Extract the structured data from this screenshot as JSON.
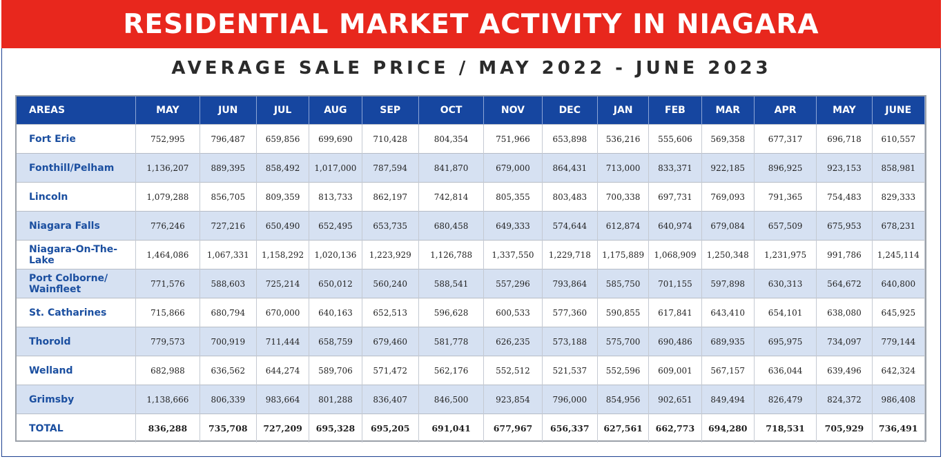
{
  "header": {
    "title": "RESIDENTIAL MARKET ACTIVITY IN NIAGARA",
    "subtitle": "AVERAGE SALE PRICE / MAY 2022 - JUNE 2023"
  },
  "colors": {
    "banner": "#e8271d",
    "header_row": "#1646a0",
    "alt_row": "#d6e1f2",
    "area_text": "#1b4fa0"
  },
  "chart_data": {
    "type": "table",
    "columns": [
      "AREAS",
      "MAY",
      "JUN",
      "JUL",
      "AUG",
      "SEP",
      "OCT",
      "NOV",
      "DEC",
      "JAN",
      "FEB",
      "MAR",
      "APR",
      "MAY",
      "JUNE"
    ],
    "rows": [
      [
        "Fort Erie",
        "752,995",
        "796,487",
        "659,856",
        "699,690",
        "710,428",
        "804,354",
        "751,966",
        "653,898",
        "536,216",
        "555,606",
        "569,358",
        "677,317",
        "696,718",
        "610,557"
      ],
      [
        "Fonthill/Pelham",
        "1,136,207",
        "889,395",
        "858,492",
        "1,017,000",
        "787,594",
        "841,870",
        "679,000",
        "864,431",
        "713,000",
        "833,371",
        "922,185",
        "896,925",
        "923,153",
        "858,981"
      ],
      [
        "Lincoln",
        "1,079,288",
        "856,705",
        "809,359",
        "813,733",
        "862,197",
        "742,814",
        "805,355",
        "803,483",
        "700,338",
        "697,731",
        "769,093",
        "791,365",
        "754,483",
        "829,333"
      ],
      [
        "Niagara Falls",
        "776,246",
        "727,216",
        "650,490",
        "652,495",
        "653,735",
        "680,458",
        "649,333",
        "574,644",
        "612,874",
        "640,974",
        "679,084",
        "657,509",
        "675,953",
        "678,231"
      ],
      [
        "Niagara-On-The-Lake",
        "1,464,086",
        "1,067,331",
        "1,158,292",
        "1,020,136",
        "1,223,929",
        "1,126,788",
        "1,337,550",
        "1,229,718",
        "1,175,889",
        "1,068,909",
        "1,250,348",
        "1,231,975",
        "991,786",
        "1,245,114"
      ],
      [
        "Port Colborne/ Wainfleet",
        "771,576",
        "588,603",
        "725,214",
        "650,012",
        "560,240",
        "588,541",
        "557,296",
        "793,864",
        "585,750",
        "701,155",
        "597,898",
        "630,313",
        "564,672",
        "640,800"
      ],
      [
        "St. Catharines",
        "715,866",
        "680,794",
        "670,000",
        "640,163",
        "652,513",
        "596,628",
        "600,533",
        "577,360",
        "590,855",
        "617,841",
        "643,410",
        "654,101",
        "638,080",
        "645,925"
      ],
      [
        "Thorold",
        "779,573",
        "700,919",
        "711,444",
        "658,759",
        "679,460",
        "581,778",
        "626,235",
        "573,188",
        "575,700",
        "690,486",
        "689,935",
        "695,975",
        "734,097",
        "779,144"
      ],
      [
        "Welland",
        "682,988",
        "636,562",
        "644,274",
        "589,706",
        "571,472",
        "562,176",
        "552,512",
        "521,537",
        "552,596",
        "609,001",
        "567,157",
        "636,044",
        "639,496",
        "642,324"
      ],
      [
        "Grimsby",
        "1,138,666",
        "806,339",
        "983,664",
        "801,288",
        "836,407",
        "846,500",
        "923,854",
        "796,000",
        "854,956",
        "902,651",
        "849,494",
        "826,479",
        "824,372",
        "986,408"
      ]
    ],
    "total_row": [
      "TOTAL",
      "836,288",
      "735,708",
      "727,209",
      "695,328",
      "695,205",
      "691,041",
      "677,967",
      "656,337",
      "627,561",
      "662,773",
      "694,280",
      "718,531",
      "705,929",
      "736,491"
    ]
  }
}
